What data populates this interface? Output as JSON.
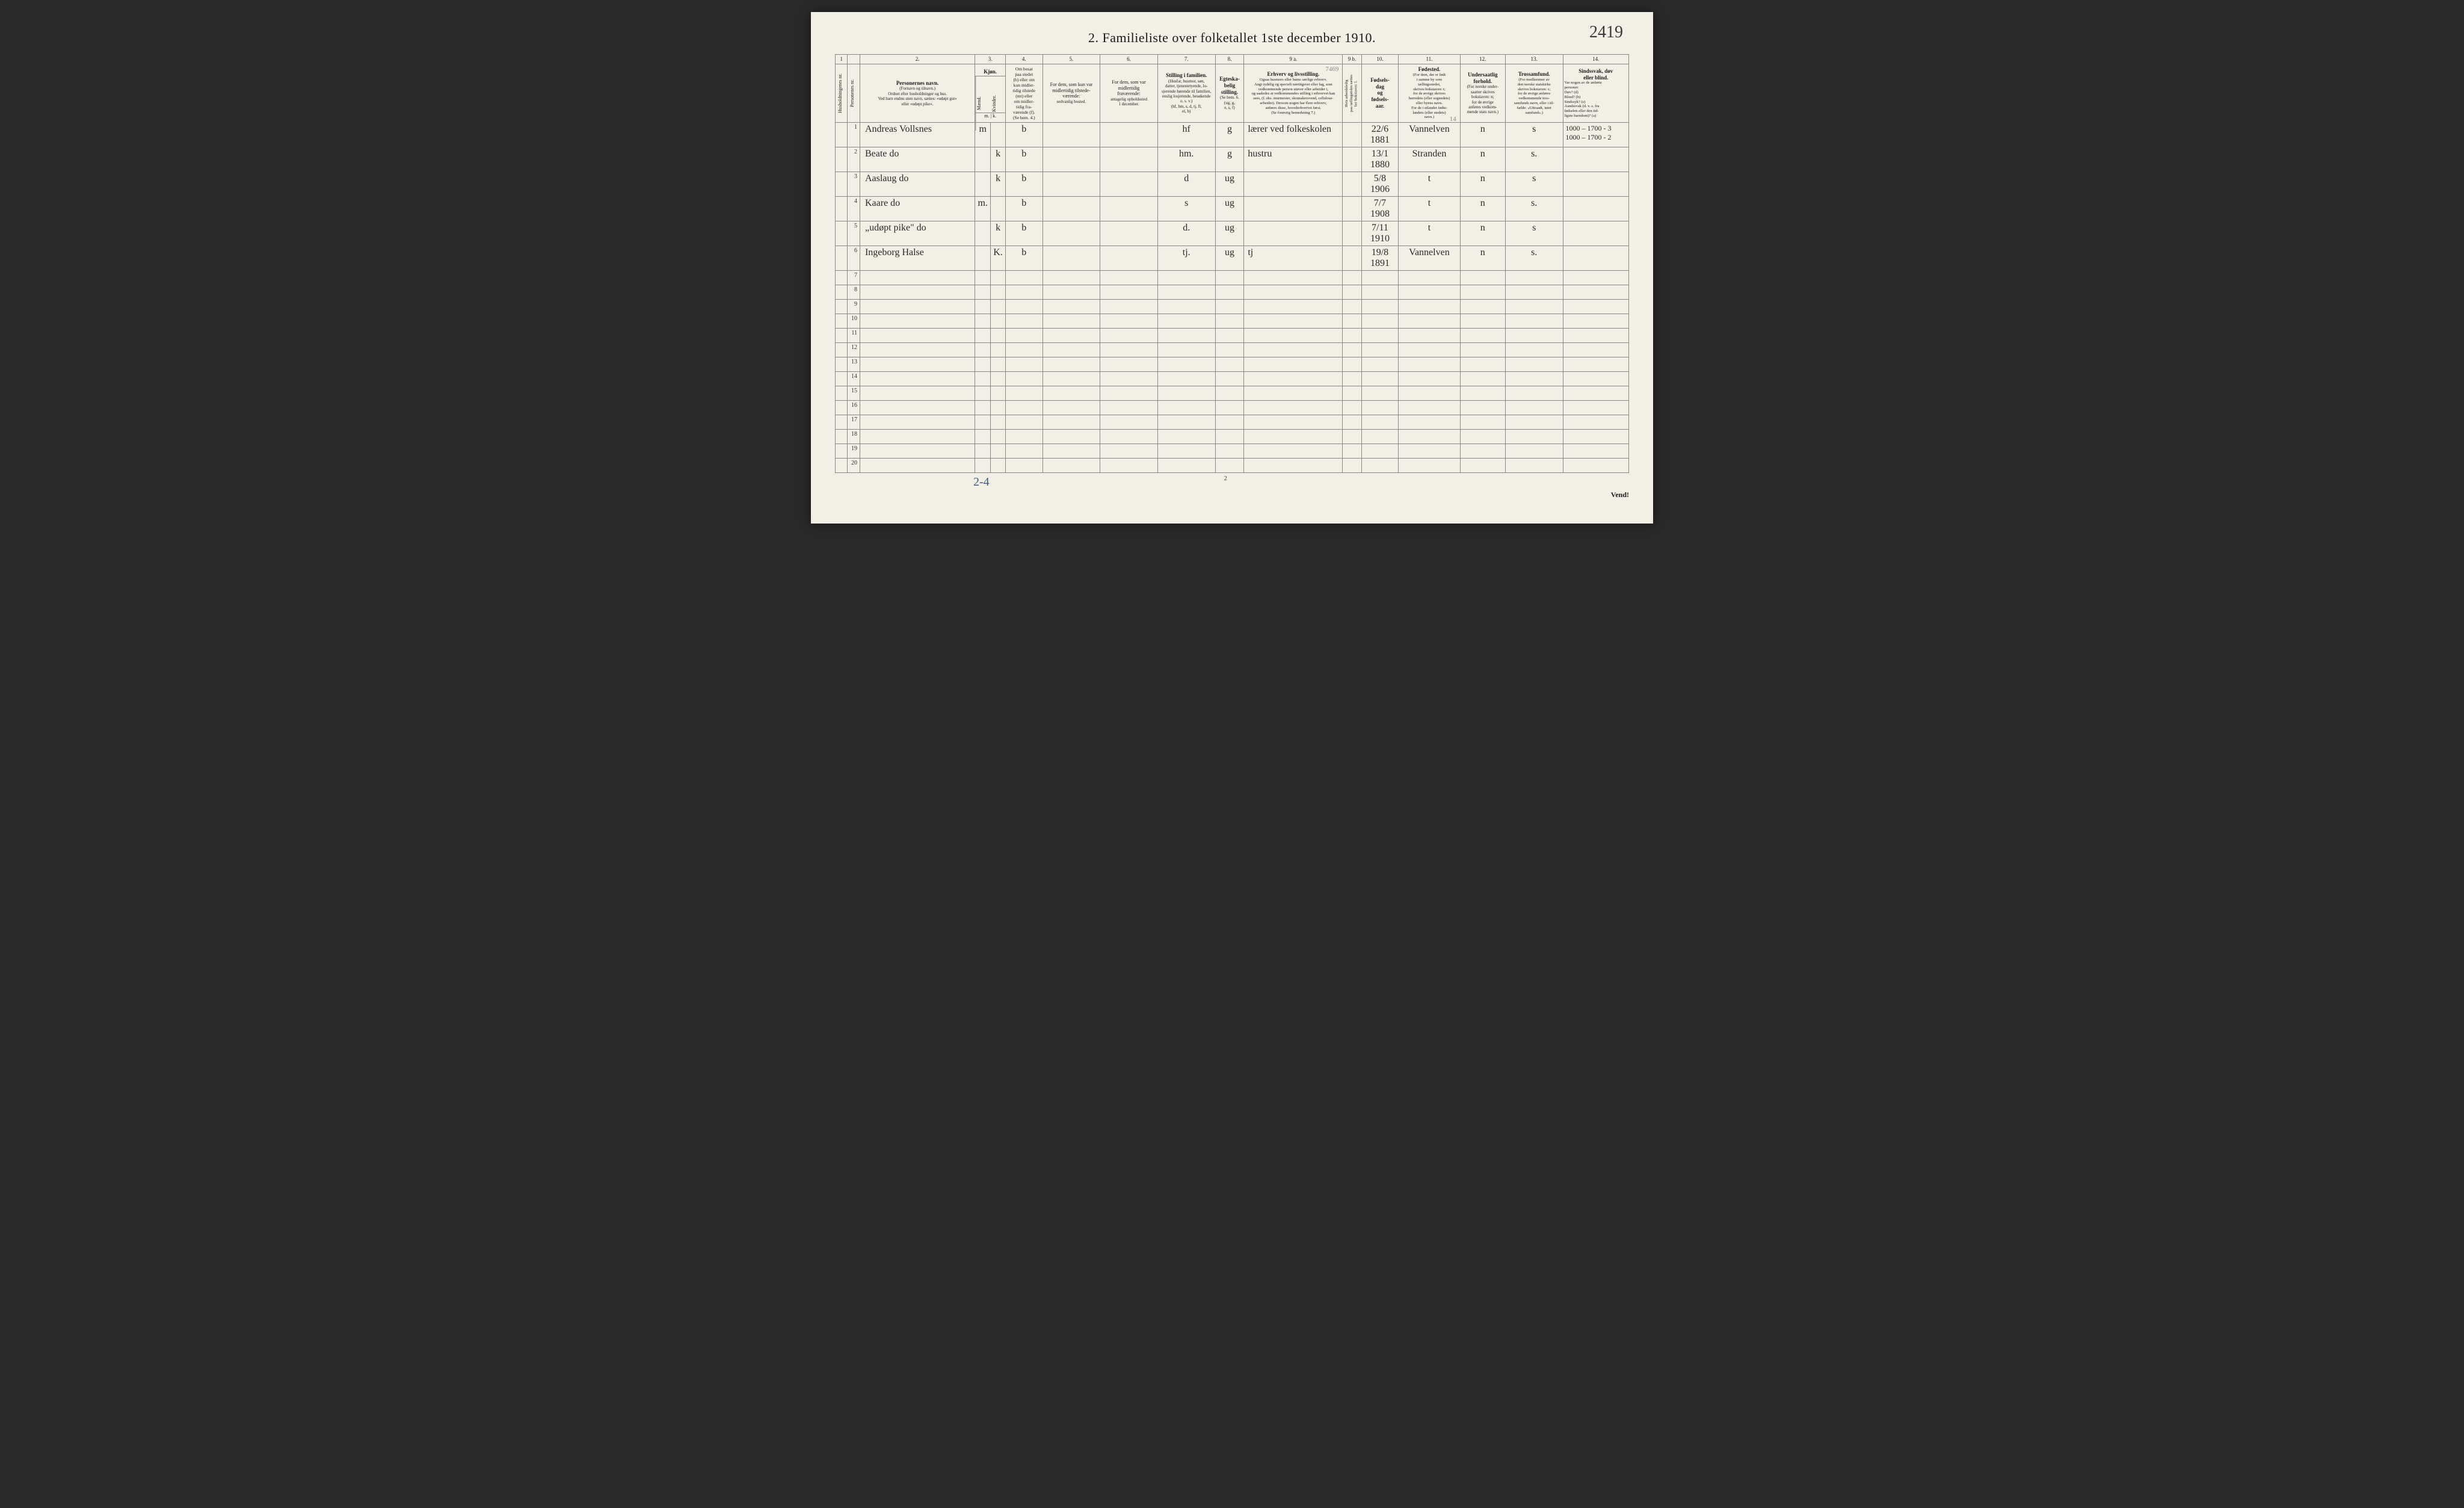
{
  "page_corner_annotation": "2419",
  "title": "2.   Familieliste over folketallet 1ste december 1910.",
  "column_numbers": [
    "1",
    "",
    "2.",
    "3.",
    "",
    "4.",
    "5.",
    "6.",
    "7.",
    "8.",
    "9 a.",
    "9 b.",
    "10.",
    "11.",
    "12.",
    "13.",
    "14."
  ],
  "headers": {
    "col1": "Husholdningenes nr.",
    "col1b": "Personenes nr.",
    "col2": {
      "title": "Personernes navn.",
      "sub": "(Fornavn og tilnavn.)\nOrdnet efter husholdninger og hus.\nVed barn endnu uten navn, sættes: «udøpt gut»\neller «udøpt pike»."
    },
    "col3": {
      "title": "Kjøn.",
      "m": "Mænd.",
      "k": "Kvinder.",
      "mk": "m. | k."
    },
    "col4": {
      "title": "Om bosat\npaa stedet\n(b) eller om\nkun midler-\ntidig tilstede\n(mt) eller\nom midler-\ntidig fra-\nværende (f).\n(Se bem. 4.)"
    },
    "col5": {
      "title": "For dem, som kun var\nmidlertidig tilstede-\nværende:",
      "sub": "sedvanlig bosted."
    },
    "col6": {
      "title": "For dem, som var\nmidlertidig\nfraværende:",
      "sub": "antagelig opholdssted\n1 december."
    },
    "col7": {
      "title": "Stilling i familien.",
      "sub": "(Husfar, husmor, søn,\ndatter, tjenestetyende, lo-\nsjerende hørende til familien,\nenslig losjerende, besøkende\no. s. v.)\n(hf, hm, s, d, tj, fl,\nel, b)"
    },
    "col8": {
      "title": "Egteska-\nbelig\nstilling.",
      "sub": "(Se bem. 6.\n(ug, g,\ne, s, f)"
    },
    "col9a": {
      "title": "Erhverv og livsstilling.",
      "sub": "Ogsaa husmors eller barns særlige erhverv.\nAngi tydelig og specielt næringsvei eller fag, som\nvedkommende person utøver eller arbeider i,\nog saaledes at vedkommendes stilling i erhvervet kan\nsees, (f. eks. murmester, skomakersvend, cellulose-\narbeider). Dersom nogen har flere erhverv,\nanføres disse, hovederhvervet først.\n(Se forøvrig bemerkning 7.)"
    },
    "col9b": "Hvis arbeidsledig\npaa tællingstiden sættes\nher bokstaven: l.",
    "col10": {
      "title": "Fødsels-\ndag\nog\nfødsels-\naar."
    },
    "col11": {
      "title": "Fødested.",
      "sub": "(For dem, der er født\ni samme by som\ntællingsstedet,\nskrives bokstaven: t;\nfor de øvrige skrives\nherredets (eller sognedets)\neller byens navn.\nFor de i utlandet fødte:\nlandets (eller stedets)\nnavn.)"
    },
    "col12": {
      "title": "Undersaatlig\nforhold.",
      "sub": "(For norske under-\nsaatter skrives\nbokstaven: n;\nfor de øvrige\nanføres vedkom-\nmende stats navn.)"
    },
    "col13": {
      "title": "Trossamfund.",
      "sub": "(For medlemmer av\nden norske statskirke\nskrives bokstaven: s;\nfor de øvrige anføres\nvedkommende tros-\nsamfunds navn, eller i til-\nfælde: «Uttraadt, intet\nsamfund».)"
    },
    "col14": {
      "title": "Sindssvak, døv\neller blind.",
      "sub": "Var nogen av de anførte\npersoner:\nDøv?        (d)\nBlind?      (b)\nSindssyk?  (s)\nAandssvak (d. v. s. fra\nfødselen eller den tid-\nligste barndom)?  (a)"
    }
  },
  "pencil_top_9a": "7469",
  "rows": [
    {
      "num": "1",
      "name": "Andreas Vollsnes",
      "m": "m",
      "k": "",
      "bosat": "b",
      "col5": "",
      "col6": "",
      "stilling": "hf",
      "egt": "g",
      "erhverv": "lærer ved folkeskolen",
      "col9b": "",
      "fodsel": "22/6 1881",
      "fodested": "Vannelven",
      "under": "n",
      "tros": "s",
      "col14": "1000 – 1700 - 3\n1000 – 1700 - 2",
      "fodested_note": "14"
    },
    {
      "num": "2",
      "name": "Beate        do",
      "m": "",
      "k": "k",
      "bosat": "b",
      "col5": "",
      "col6": "",
      "stilling": "hm.",
      "egt": "g",
      "erhverv": "hustru",
      "col9b": "",
      "fodsel": "13/1 1880",
      "fodested": "Stranden",
      "under": "n",
      "tros": "s.",
      "col14": ""
    },
    {
      "num": "3",
      "name": "Aaslaug     do",
      "m": "",
      "k": "k",
      "bosat": "b",
      "col5": "",
      "col6": "",
      "stilling": "d",
      "egt": "ug",
      "erhverv": "",
      "col9b": "",
      "fodsel": "5/8 1906",
      "fodested": "t",
      "under": "n",
      "tros": "s",
      "col14": ""
    },
    {
      "num": "4",
      "name": "Kaare        do",
      "m": "m.",
      "k": "",
      "bosat": "b",
      "col5": "",
      "col6": "",
      "stilling": "s",
      "egt": "ug",
      "erhverv": "",
      "col9b": "",
      "fodsel": "7/7 1908",
      "fodested": "t",
      "under": "n",
      "tros": "s.",
      "col14": ""
    },
    {
      "num": "5",
      "name": "„udøpt pike\"  do",
      "m": "",
      "k": "k",
      "bosat": "b",
      "col5": "",
      "col6": "",
      "stilling": "d.",
      "egt": "ug",
      "erhverv": "",
      "col9b": "",
      "fodsel": "7/11 1910",
      "fodested": "t",
      "under": "n",
      "tros": "s",
      "col14": ""
    },
    {
      "num": "6",
      "name": "Ingeborg Halse",
      "m": "",
      "k": "K.",
      "bosat": "b",
      "col5": "",
      "col6": "",
      "stilling": "tj.",
      "egt": "ug",
      "erhverv": "tj",
      "erhverv_blue": true,
      "col9b": "",
      "fodsel": "19/8 1891",
      "fodested": "Vannelven",
      "under": "n",
      "tros": "s.",
      "col14": ""
    },
    {
      "num": "7"
    },
    {
      "num": "8"
    },
    {
      "num": "9"
    },
    {
      "num": "10"
    },
    {
      "num": "11"
    },
    {
      "num": "12"
    },
    {
      "num": "13"
    },
    {
      "num": "14"
    },
    {
      "num": "15"
    },
    {
      "num": "16"
    },
    {
      "num": "17"
    },
    {
      "num": "18"
    },
    {
      "num": "19"
    },
    {
      "num": "20"
    }
  ],
  "bottom_mark": "2-4",
  "page_number_bottom": "2",
  "vend": "Vend!",
  "colors": {
    "page_bg": "#f2efe4",
    "border": "#888888",
    "ink": "#2a2a2a",
    "blue_ink": "#3a5a8a",
    "pencil": "#888888"
  }
}
